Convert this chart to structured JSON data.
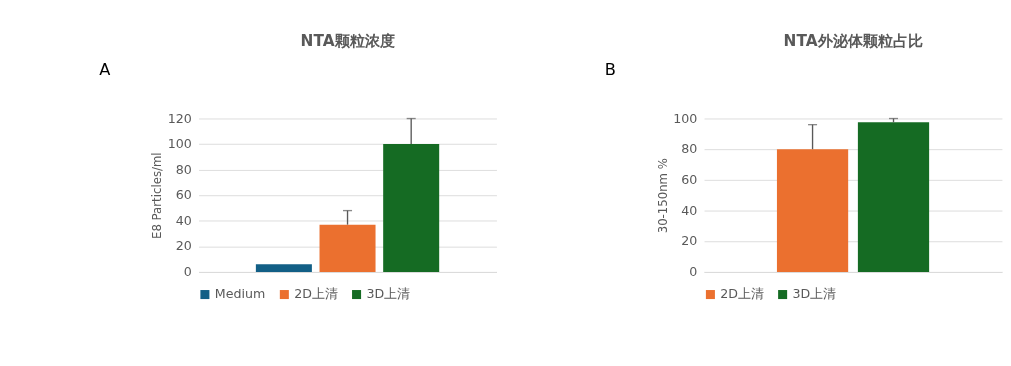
{
  "chart_data": [
    {
      "type": "bar",
      "title": "NTA颗粒浓度",
      "ylabel": "E8 Particles/ml",
      "annotations": [
        "A"
      ],
      "categories": [
        null
      ],
      "stacked": false,
      "series": [
        {
          "name": "Medium",
          "color": "#125f86",
          "values": [
            6
          ],
          "errors": [
            null
          ]
        },
        {
          "name": "2D上清",
          "color": "#eb702f",
          "values": [
            37
          ],
          "errors": [
            [
              37,
              48
            ]
          ]
        },
        {
          "name": "3D上清",
          "color": "#156b23",
          "values": [
            100
          ],
          "errors": [
            [
              100,
              120
            ]
          ]
        }
      ],
      "ylim": [
        0,
        120
      ],
      "yticks": [
        0,
        20,
        40,
        60,
        80,
        100,
        120
      ],
      "grid": "y",
      "legend": "bottom",
      "tick_labels": "y"
    },
    {
      "type": "bar",
      "title": "NTA外泌体颗粒占比",
      "ylabel": "30-150nm %",
      "annotations": [
        "B"
      ],
      "categories": [
        null
      ],
      "stacked": false,
      "series": [
        {
          "name": "2D上清",
          "color": "#eb702f",
          "values": [
            80
          ],
          "errors": [
            [
              80,
              96
            ]
          ]
        },
        {
          "name": "3D上清",
          "color": "#156b23",
          "values": [
            97.5
          ],
          "errors": [
            [
              97.5,
              100
            ]
          ]
        }
      ],
      "ylim": [
        0,
        100
      ],
      "yticks": [
        0,
        20,
        40,
        60,
        80,
        100
      ],
      "grid": "y",
      "legend": "bottom",
      "tick_labels": "y"
    }
  ]
}
